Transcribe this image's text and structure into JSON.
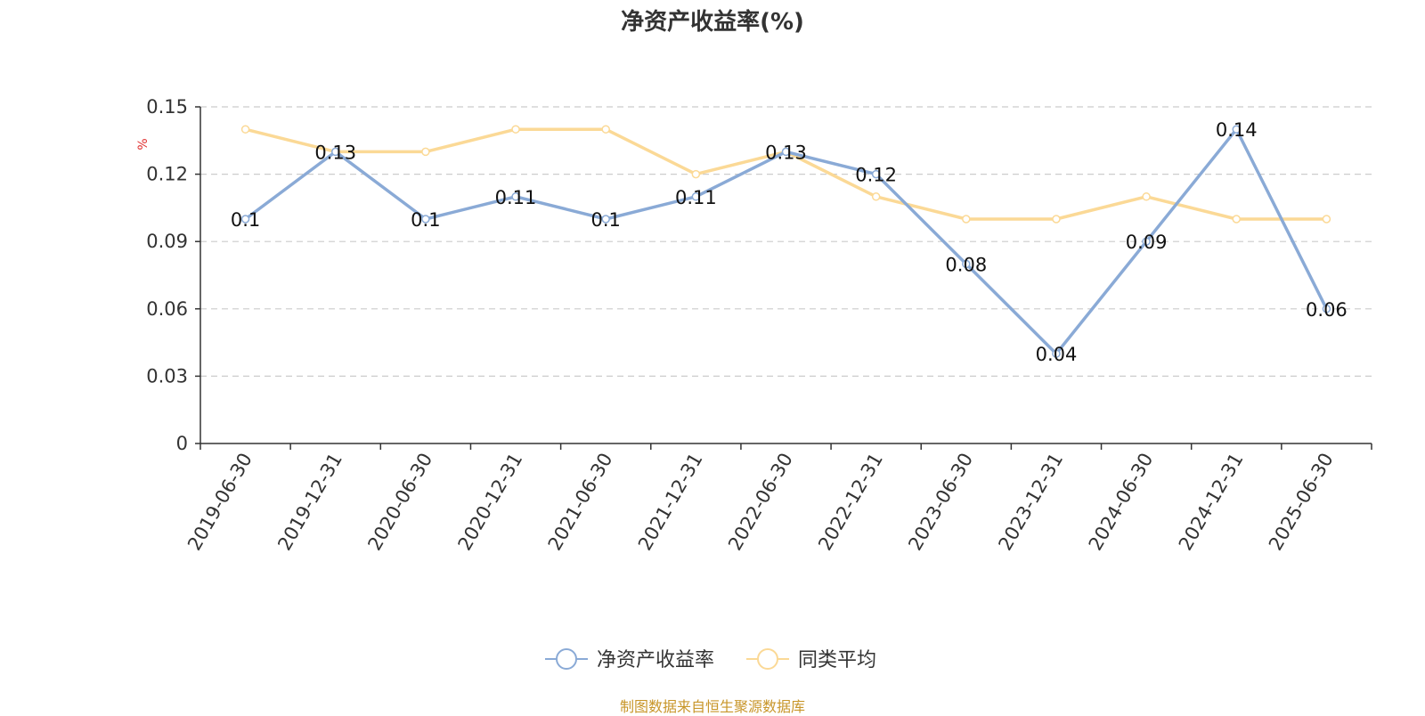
{
  "chart_data": {
    "type": "line",
    "title": "净资产收益率(%)",
    "ylabel": "%",
    "categories": [
      "2019-06-30",
      "2019-12-31",
      "2020-06-30",
      "2020-12-31",
      "2021-06-30",
      "2021-12-31",
      "2022-06-30",
      "2022-12-31",
      "2023-06-30",
      "2023-12-31",
      "2024-06-30",
      "2024-12-31",
      "2025-06-30"
    ],
    "ylim": [
      0,
      0.15
    ],
    "yticks": [
      "0",
      "0.03",
      "0.06",
      "0.09",
      "0.12",
      "0.15"
    ],
    "grid": true,
    "legend_position": "bottom",
    "series": [
      {
        "name": "净资产收益率",
        "color": "#8aaad6",
        "values": [
          0.1,
          0.13,
          0.1,
          0.11,
          0.1,
          0.11,
          0.13,
          0.12,
          0.08,
          0.04,
          0.09,
          0.14,
          0.06
        ],
        "labels": [
          "0.1",
          "0.13",
          "0.1",
          "0.11",
          "0.1",
          "0.11",
          "0.13",
          "0.12",
          "0.08",
          "0.04",
          "0.09",
          "0.14",
          "0.06"
        ]
      },
      {
        "name": "同类平均",
        "color": "#fbd996",
        "values": [
          0.14,
          0.13,
          0.13,
          0.14,
          0.14,
          0.12,
          0.13,
          0.11,
          0.1,
          0.1,
          0.11,
          0.1,
          0.1
        ]
      }
    ]
  },
  "footer": {
    "source": "制图数据来自恒生聚源数据库"
  }
}
